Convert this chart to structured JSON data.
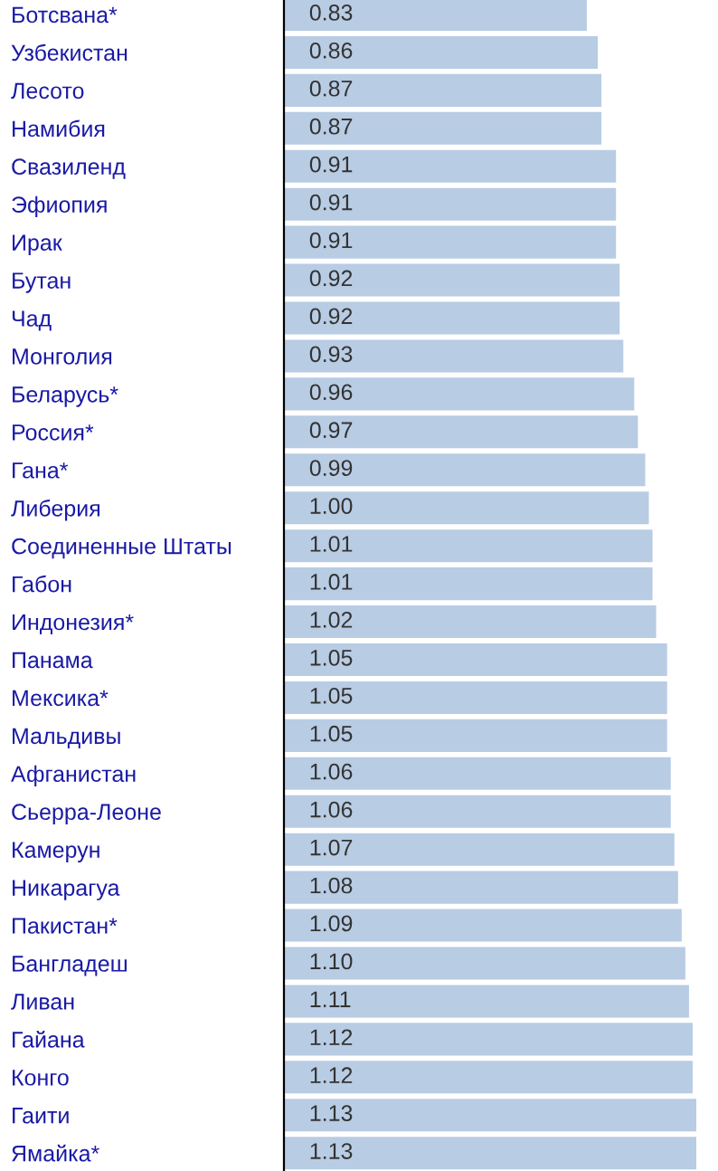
{
  "chart_data": {
    "type": "bar",
    "orientation": "horizontal",
    "color": "#b8cce4",
    "categories": [
      "Ботсвана*",
      "Узбекистан",
      "Лесото",
      "Намибия",
      "Свазиленд",
      "Эфиопия",
      "Ирак",
      "Бутан",
      "Чад",
      "Монголия",
      "Беларусь*",
      "Россия*",
      "Гана*",
      "Либерия",
      "Соединенные Штаты",
      "Габон",
      "Индонезия*",
      "Панама",
      "Мексика*",
      "Мальдивы",
      "Афганистан",
      "Сьерра-Леоне",
      "Камерун",
      "Никарагуа",
      "Пакистан*",
      "Бангладеш",
      "Ливан",
      "Гайана",
      "Конго",
      "Гаити",
      "Ямайка*"
    ],
    "values": [
      0.83,
      0.86,
      0.87,
      0.87,
      0.91,
      0.91,
      0.91,
      0.92,
      0.92,
      0.93,
      0.96,
      0.97,
      0.99,
      1.0,
      1.01,
      1.01,
      1.02,
      1.05,
      1.05,
      1.05,
      1.06,
      1.06,
      1.07,
      1.08,
      1.09,
      1.1,
      1.11,
      1.12,
      1.12,
      1.13,
      1.13
    ],
    "value_labels": [
      "0.83",
      "0.86",
      "0.87",
      "0.87",
      "0.91",
      "0.91",
      "0.91",
      "0.92",
      "0.92",
      "0.93",
      "0.96",
      "0.97",
      "0.99",
      "1.00",
      "1.01",
      "1.01",
      "1.02",
      "1.05",
      "1.05",
      "1.05",
      "1.06",
      "1.06",
      "1.07",
      "1.08",
      "1.09",
      "1.10",
      "1.11",
      "1.12",
      "1.12",
      "1.13",
      "1.13"
    ],
    "tick_labels": "y",
    "grid": false,
    "legend": false
  }
}
